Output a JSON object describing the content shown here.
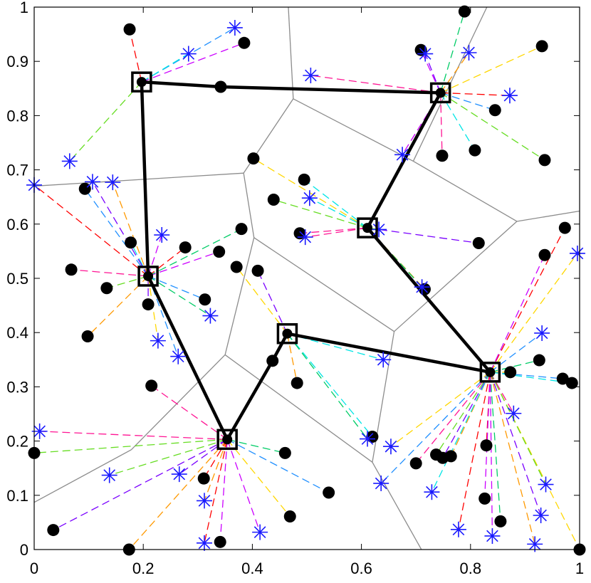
{
  "chart_data": {
    "type": "scatter",
    "title": "",
    "xlabel": "",
    "ylabel": "",
    "xlim": [
      0,
      1
    ],
    "ylim": [
      0,
      1
    ],
    "grid": false,
    "x_ticks": [
      "0",
      "0.2",
      "0.4",
      "0.6",
      "0.8",
      "1"
    ],
    "x_tick_values": [
      0,
      0.2,
      0.4,
      0.6,
      0.8,
      1
    ],
    "y_ticks": [
      "0",
      "0.1",
      "0.2",
      "0.3",
      "0.4",
      "0.5",
      "0.6",
      "0.7",
      "0.8",
      "0.9",
      "1"
    ],
    "y_tick_values": [
      0,
      0.1,
      0.2,
      0.3,
      0.4,
      0.5,
      0.6,
      0.7,
      0.8,
      0.9,
      1
    ],
    "colors": {
      "path": "#000000",
      "voronoi": "#8c8c8c",
      "dot": "#000000",
      "star": "#1a1aff",
      "dash_palette": [
        "#ff0000",
        "#cc00ff",
        "#00cc66",
        "#ffd700",
        "#1f8fff",
        "#00e5e5",
        "#ff1493",
        "#66dd22",
        "#7a00ff",
        "#ff9900"
      ]
    },
    "hubs": [
      {
        "x": 0.197,
        "y": 0.862
      },
      {
        "x": 0.745,
        "y": 0.842
      },
      {
        "x": 0.611,
        "y": 0.593
      },
      {
        "x": 0.209,
        "y": 0.504
      },
      {
        "x": 0.464,
        "y": 0.398
      },
      {
        "x": 0.836,
        "y": 0.327
      },
      {
        "x": 0.354,
        "y": 0.203
      }
    ],
    "path": [
      {
        "x": 0.197,
        "y": 0.862
      },
      {
        "x": 0.342,
        "y": 0.853
      },
      {
        "x": 0.745,
        "y": 0.842
      },
      {
        "x": 0.611,
        "y": 0.593
      },
      {
        "x": 0.836,
        "y": 0.327
      },
      {
        "x": 0.464,
        "y": 0.398
      },
      {
        "x": 0.437,
        "y": 0.348
      },
      {
        "x": 0.354,
        "y": 0.203
      },
      {
        "x": 0.209,
        "y": 0.504
      },
      {
        "x": 0.197,
        "y": 0.862
      }
    ],
    "voronoi": [
      [
        [
          0.0,
          0.67
        ],
        [
          0.384,
          0.694
        ]
      ],
      [
        [
          0.384,
          0.694
        ],
        [
          0.475,
          0.831
        ]
      ],
      [
        [
          0.475,
          0.831
        ],
        [
          0.466,
          1.0
        ]
      ],
      [
        [
          0.475,
          0.831
        ],
        [
          0.695,
          0.716
        ]
      ],
      [
        [
          0.695,
          0.716
        ],
        [
          0.885,
          0.605
        ]
      ],
      [
        [
          0.885,
          0.605
        ],
        [
          1.0,
          0.624
        ]
      ],
      [
        [
          0.695,
          0.716
        ],
        [
          0.83,
          1.0
        ]
      ],
      [
        [
          0.384,
          0.694
        ],
        [
          0.403,
          0.575
        ]
      ],
      [
        [
          0.403,
          0.575
        ],
        [
          0.35,
          0.359
        ]
      ],
      [
        [
          0.35,
          0.359
        ],
        [
          0.178,
          0.184
        ]
      ],
      [
        [
          0.178,
          0.184
        ],
        [
          0.0,
          0.087
        ]
      ],
      [
        [
          0.35,
          0.359
        ],
        [
          0.62,
          0.161
        ]
      ],
      [
        [
          0.403,
          0.575
        ],
        [
          0.66,
          0.402
        ]
      ],
      [
        [
          0.66,
          0.402
        ],
        [
          0.62,
          0.161
        ]
      ],
      [
        [
          0.66,
          0.402
        ],
        [
          0.885,
          0.605
        ]
      ],
      [
        [
          0.62,
          0.161
        ],
        [
          0.71,
          0.0
        ]
      ]
    ],
    "dots": [
      {
        "x": 0.175,
        "y": 0.959
      },
      {
        "x": 0.385,
        "y": 0.934
      },
      {
        "x": 0.342,
        "y": 0.853
      },
      {
        "x": 0.402,
        "y": 0.721
      },
      {
        "x": 0.093,
        "y": 0.665
      },
      {
        "x": 0.177,
        "y": 0.566
      },
      {
        "x": 0.068,
        "y": 0.516
      },
      {
        "x": 0.133,
        "y": 0.482
      },
      {
        "x": 0.209,
        "y": 0.452
      },
      {
        "x": 0.098,
        "y": 0.393
      },
      {
        "x": 0.277,
        "y": 0.557
      },
      {
        "x": 0.339,
        "y": 0.549
      },
      {
        "x": 0.38,
        "y": 0.591
      },
      {
        "x": 0.371,
        "y": 0.521
      },
      {
        "x": 0.313,
        "y": 0.461
      },
      {
        "x": 0.495,
        "y": 0.682
      },
      {
        "x": 0.487,
        "y": 0.583
      },
      {
        "x": 0.439,
        "y": 0.645
      },
      {
        "x": 0.41,
        "y": 0.514
      },
      {
        "x": 0.482,
        "y": 0.307
      },
      {
        "x": 0.437,
        "y": 0.348
      },
      {
        "x": 0.709,
        "y": 0.921
      },
      {
        "x": 0.789,
        "y": 0.992
      },
      {
        "x": 0.931,
        "y": 0.928
      },
      {
        "x": 0.845,
        "y": 0.81
      },
      {
        "x": 0.808,
        "y": 0.736
      },
      {
        "x": 0.748,
        "y": 0.726
      },
      {
        "x": 0.936,
        "y": 0.718
      },
      {
        "x": 0.815,
        "y": 0.565
      },
      {
        "x": 0.716,
        "y": 0.48
      },
      {
        "x": 0.973,
        "y": 0.593
      },
      {
        "x": 0.936,
        "y": 0.543
      },
      {
        "x": 0.926,
        "y": 0.349
      },
      {
        "x": 0.873,
        "y": 0.327
      },
      {
        "x": 0.969,
        "y": 0.315
      },
      {
        "x": 0.986,
        "y": 0.307
      },
      {
        "x": 0.215,
        "y": 0.302
      },
      {
        "x": 0.0,
        "y": 0.178
      },
      {
        "x": 0.035,
        "y": 0.036
      },
      {
        "x": 0.174,
        "y": 0.0
      },
      {
        "x": 0.311,
        "y": 0.131
      },
      {
        "x": 0.341,
        "y": 0.014
      },
      {
        "x": 0.46,
        "y": 0.178
      },
      {
        "x": 0.469,
        "y": 0.061
      },
      {
        "x": 0.54,
        "y": 0.105
      },
      {
        "x": 0.62,
        "y": 0.208
      },
      {
        "x": 0.7,
        "y": 0.159
      },
      {
        "x": 0.737,
        "y": 0.175
      },
      {
        "x": 0.749,
        "y": 0.169
      },
      {
        "x": 0.764,
        "y": 0.172
      },
      {
        "x": 0.829,
        "y": 0.192
      },
      {
        "x": 0.826,
        "y": 0.094
      },
      {
        "x": 0.855,
        "y": 0.052
      },
      {
        "x": 1.0,
        "y": 0.0
      }
    ],
    "stars": [
      {
        "x": 0.368,
        "y": 0.962
      },
      {
        "x": 0.283,
        "y": 0.914
      },
      {
        "x": 0.507,
        "y": 0.874
      },
      {
        "x": 0.065,
        "y": 0.716
      },
      {
        "x": 0.107,
        "y": 0.678
      },
      {
        "x": 0.144,
        "y": 0.677
      },
      {
        "x": 0.0,
        "y": 0.672
      },
      {
        "x": 0.234,
        "y": 0.58
      },
      {
        "x": 0.323,
        "y": 0.431
      },
      {
        "x": 0.227,
        "y": 0.385
      },
      {
        "x": 0.264,
        "y": 0.356
      },
      {
        "x": 0.505,
        "y": 0.648
      },
      {
        "x": 0.497,
        "y": 0.576
      },
      {
        "x": 0.632,
        "y": 0.59
      },
      {
        "x": 0.717,
        "y": 0.914
      },
      {
        "x": 0.797,
        "y": 0.916
      },
      {
        "x": 0.872,
        "y": 0.837
      },
      {
        "x": 0.675,
        "y": 0.728
      },
      {
        "x": 0.711,
        "y": 0.484
      },
      {
        "x": 0.996,
        "y": 0.546
      },
      {
        "x": 0.931,
        "y": 0.399
      },
      {
        "x": 0.64,
        "y": 0.35
      },
      {
        "x": 0.01,
        "y": 0.218
      },
      {
        "x": 0.138,
        "y": 0.137
      },
      {
        "x": 0.266,
        "y": 0.139
      },
      {
        "x": 0.312,
        "y": 0.09
      },
      {
        "x": 0.312,
        "y": 0.012
      },
      {
        "x": 0.414,
        "y": 0.032
      },
      {
        "x": 0.611,
        "y": 0.204
      },
      {
        "x": 0.654,
        "y": 0.19
      },
      {
        "x": 0.636,
        "y": 0.122
      },
      {
        "x": 0.729,
        "y": 0.106
      },
      {
        "x": 0.879,
        "y": 0.251
      },
      {
        "x": 0.938,
        "y": 0.12
      },
      {
        "x": 0.929,
        "y": 0.063
      },
      {
        "x": 0.918,
        "y": 0.01
      },
      {
        "x": 0.778,
        "y": 0.037
      },
      {
        "x": 0.84,
        "y": 0.025
      }
    ]
  }
}
